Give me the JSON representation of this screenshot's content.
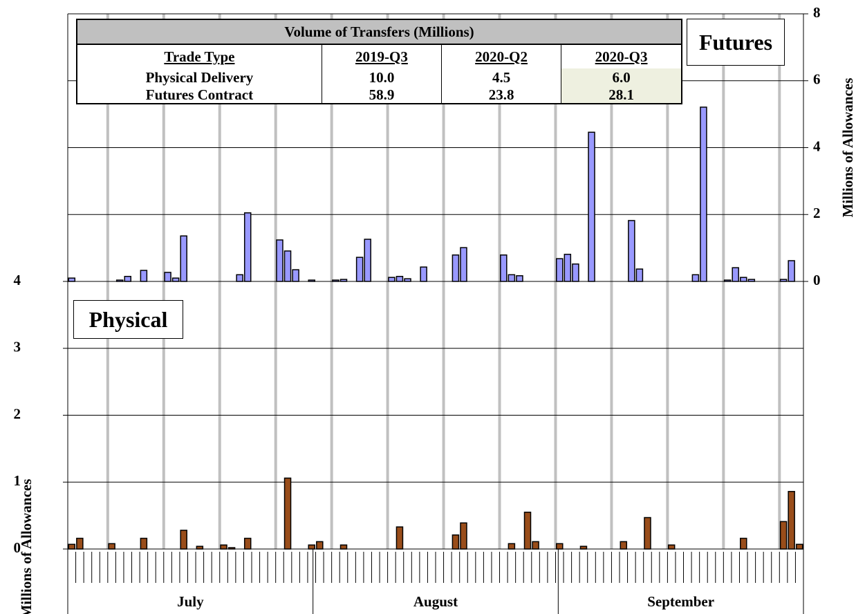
{
  "table": {
    "title": "Volume of Transfers (Millions)",
    "header": [
      "Trade Type",
      "2019-Q3",
      "2020-Q2",
      "2020-Q3"
    ],
    "rows": [
      [
        "Physical Delivery",
        "10.0",
        "4.5",
        "6.0"
      ],
      [
        "Futures Contract",
        "58.9",
        "23.8",
        "28.1"
      ]
    ]
  },
  "chart_data": [
    {
      "type": "bar",
      "label": "Futures",
      "y_label": "Millions of Allowances",
      "color": "#9999ff",
      "categories": [
        null,
        null,
        null,
        null,
        null,
        null,
        null,
        null,
        null,
        null,
        null,
        null,
        null,
        null,
        null,
        null,
        null,
        null,
        null,
        null,
        null,
        null,
        null,
        null,
        null,
        null,
        null,
        null,
        null,
        null,
        null,
        null,
        null,
        null,
        null,
        null,
        null,
        null,
        null,
        null,
        null,
        null,
        null,
        null,
        null,
        null,
        null,
        null,
        null,
        null,
        null,
        null,
        null,
        null,
        null,
        null,
        null,
        null,
        null,
        null,
        null,
        null,
        null,
        null,
        null,
        null,
        null,
        null,
        null,
        null,
        null,
        null,
        null,
        null,
        null,
        null,
        null,
        null,
        null,
        null,
        null,
        null,
        null,
        null,
        null,
        null,
        null,
        null,
        null,
        null,
        null,
        null
      ],
      "values": [
        0.1,
        null,
        null,
        null,
        null,
        null,
        0.04,
        0.15,
        null,
        0.33,
        null,
        null,
        0.27,
        0.1,
        1.36,
        null,
        null,
        null,
        null,
        null,
        null,
        0.2,
        2.05,
        null,
        null,
        null,
        1.24,
        0.91,
        0.35,
        null,
        0.04,
        null,
        null,
        0.04,
        0.06,
        null,
        0.72,
        1.26,
        null,
        null,
        0.12,
        0.15,
        0.08,
        null,
        0.43,
        null,
        null,
        null,
        0.79,
        1.01,
        null,
        null,
        null,
        null,
        0.79,
        0.2,
        0.17,
        null,
        null,
        null,
        null,
        0.68,
        0.81,
        0.52,
        null,
        4.46,
        null,
        null,
        null,
        null,
        1.82,
        0.37,
        null,
        null,
        null,
        null,
        null,
        null,
        0.2,
        5.21,
        null,
        null,
        0.04,
        0.41,
        0.12,
        0.06,
        null,
        null,
        null,
        0.06,
        0.62,
        null
      ],
      "ylim": [
        0,
        8
      ],
      "yticks": [
        0,
        2,
        4,
        6,
        8
      ],
      "grid": true,
      "axis_side": "right"
    },
    {
      "type": "bar",
      "label": "Physical",
      "y_label": "Millions of Allowances",
      "color": "#994d1a",
      "categories": [
        null,
        null,
        null,
        null,
        null,
        null,
        null,
        null,
        null,
        null,
        null,
        null,
        null,
        null,
        null,
        null,
        null,
        null,
        null,
        null,
        null,
        null,
        null,
        null,
        null,
        null,
        null,
        null,
        null,
        null,
        null,
        null,
        null,
        null,
        null,
        null,
        null,
        null,
        null,
        null,
        null,
        null,
        null,
        null,
        null,
        null,
        null,
        null,
        null,
        null,
        null,
        null,
        null,
        null,
        null,
        null,
        null,
        null,
        null,
        null,
        null,
        null,
        null,
        null,
        null,
        null,
        null,
        null,
        null,
        null,
        null,
        null,
        null,
        null,
        null,
        null,
        null,
        null,
        null,
        null,
        null,
        null,
        null,
        null,
        null,
        null,
        null,
        null,
        null,
        null,
        null,
        null
      ],
      "values": [
        0.07,
        0.16,
        null,
        null,
        null,
        0.08,
        null,
        null,
        null,
        0.16,
        null,
        null,
        null,
        null,
        0.28,
        null,
        0.04,
        null,
        null,
        0.06,
        0.02,
        null,
        0.16,
        null,
        null,
        null,
        null,
        1.06,
        null,
        null,
        0.06,
        0.11,
        null,
        null,
        0.06,
        null,
        null,
        null,
        null,
        null,
        null,
        0.33,
        null,
        null,
        null,
        null,
        null,
        null,
        0.21,
        0.39,
        null,
        null,
        null,
        null,
        null,
        0.08,
        null,
        0.55,
        0.11,
        null,
        null,
        0.08,
        null,
        null,
        0.04,
        null,
        null,
        null,
        null,
        0.11,
        null,
        null,
        0.47,
        null,
        null,
        0.06,
        null,
        null,
        null,
        null,
        null,
        null,
        null,
        null,
        0.16,
        null,
        null,
        null,
        null,
        0.41,
        0.86,
        0.07
      ],
      "ylim": [
        0,
        4
      ],
      "yticks": [
        0,
        1,
        2,
        3,
        4
      ],
      "grid": true,
      "axis_side": "left",
      "x_groups": [
        "July",
        "August",
        "September"
      ]
    }
  ]
}
